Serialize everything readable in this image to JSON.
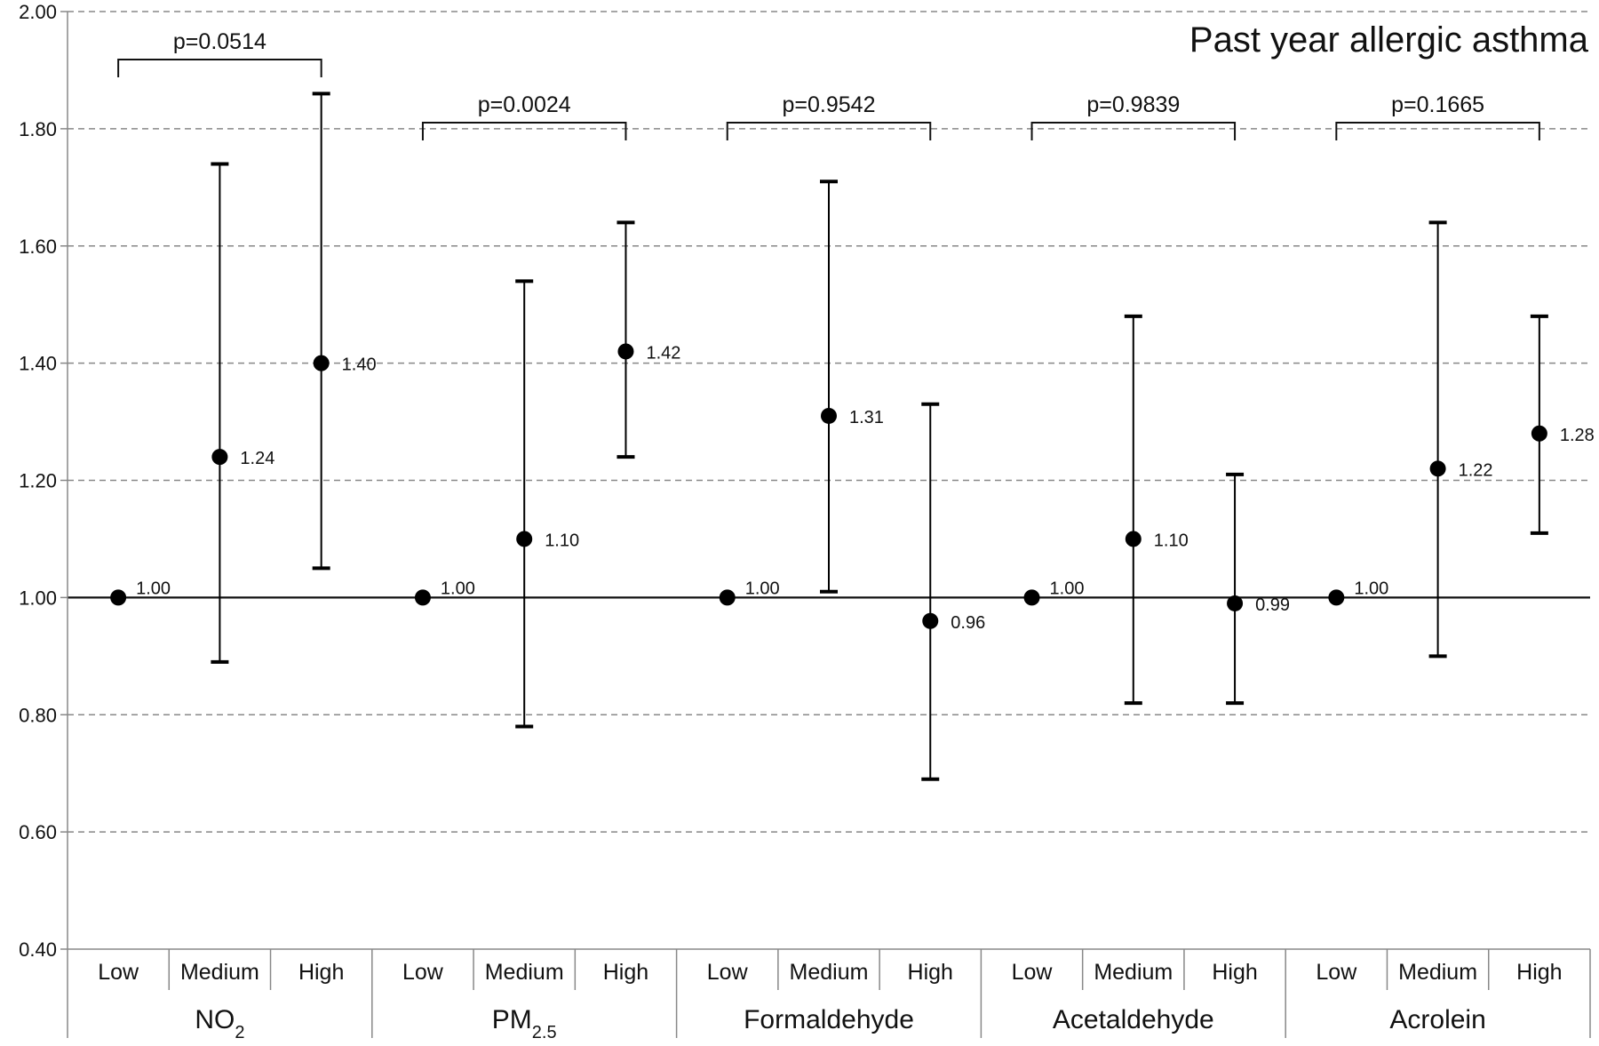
{
  "chart_data": {
    "type": "scatter",
    "title": "Past year allergic asthma",
    "ylim": [
      0.4,
      2.0
    ],
    "yticks": [
      "0.40",
      "0.60",
      "0.80",
      "1.00",
      "1.20",
      "1.40",
      "1.60",
      "1.80",
      "2.00"
    ],
    "ytick_values": [
      0.4,
      0.6,
      0.8,
      1.0,
      1.2,
      1.4,
      1.6,
      1.8,
      2.0
    ],
    "grid": "horizontal dashed",
    "reference_line": 1.0,
    "levels": [
      "Low",
      "Medium",
      "High"
    ],
    "groups": [
      {
        "name": "NO",
        "sub": "2",
        "p_value": "p=0.0514",
        "points": [
          {
            "level": "Low",
            "estimate": 1.0,
            "label": "1.00",
            "lower": null,
            "upper": null
          },
          {
            "level": "Medium",
            "estimate": 1.24,
            "label": "1.24",
            "lower": 0.89,
            "upper": 1.74
          },
          {
            "level": "High",
            "estimate": 1.4,
            "label": "1.40",
            "lower": 1.05,
            "upper": 1.86
          }
        ]
      },
      {
        "name": "PM",
        "sub": "2.5",
        "p_value": "p=0.0024",
        "points": [
          {
            "level": "Low",
            "estimate": 1.0,
            "label": "1.00",
            "lower": null,
            "upper": null
          },
          {
            "level": "Medium",
            "estimate": 1.1,
            "label": "1.10",
            "lower": 0.78,
            "upper": 1.54
          },
          {
            "level": "High",
            "estimate": 1.42,
            "label": "1.42",
            "lower": 1.24,
            "upper": 1.64
          }
        ]
      },
      {
        "name": "Formaldehyde",
        "sub": "",
        "p_value": "p=0.9542",
        "points": [
          {
            "level": "Low",
            "estimate": 1.0,
            "label": "1.00",
            "lower": null,
            "upper": null
          },
          {
            "level": "Medium",
            "estimate": 1.31,
            "label": "1.31",
            "lower": 1.01,
            "upper": 1.71
          },
          {
            "level": "High",
            "estimate": 0.96,
            "label": "0.96",
            "lower": 0.69,
            "upper": 1.33
          }
        ]
      },
      {
        "name": "Acetaldehyde",
        "sub": "",
        "p_value": "p=0.9839",
        "points": [
          {
            "level": "Low",
            "estimate": 1.0,
            "label": "1.00",
            "lower": null,
            "upper": null
          },
          {
            "level": "Medium",
            "estimate": 1.1,
            "label": "1.10",
            "lower": 0.82,
            "upper": 1.48
          },
          {
            "level": "High",
            "estimate": 0.99,
            "label": "0.99",
            "lower": 0.82,
            "upper": 1.21
          }
        ]
      },
      {
        "name": "Acrolein",
        "sub": "",
        "p_value": "p=0.1665",
        "points": [
          {
            "level": "Low",
            "estimate": 1.0,
            "label": "1.00",
            "lower": null,
            "upper": null
          },
          {
            "level": "Medium",
            "estimate": 1.22,
            "label": "1.22",
            "lower": 0.9,
            "upper": 1.64
          },
          {
            "level": "High",
            "estimate": 1.28,
            "label": "1.28",
            "lower": 1.11,
            "upper": 1.48
          }
        ]
      }
    ],
    "colors": {
      "marker": "#000000",
      "grid": "#888888",
      "axis": "#888888",
      "text": "#111111"
    }
  }
}
